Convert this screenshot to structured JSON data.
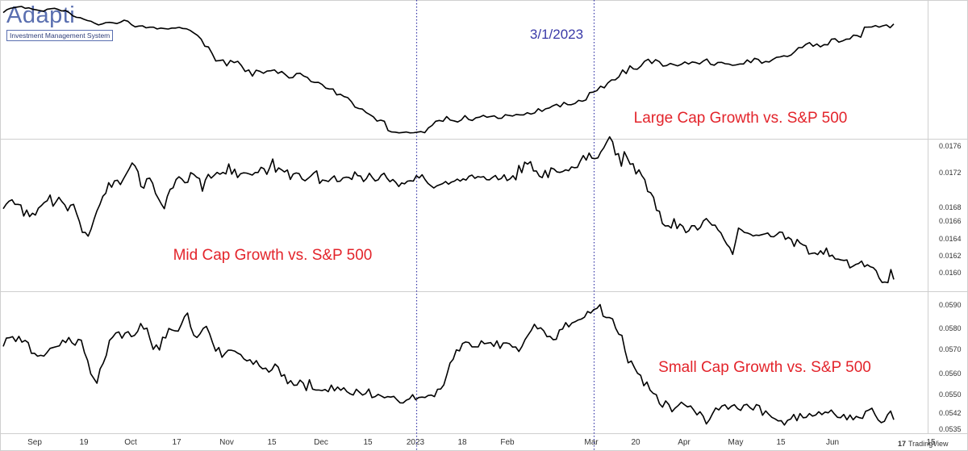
{
  "brand": {
    "name": "Adapti",
    "tagline": "Investment Management System"
  },
  "watermark": "TradingView",
  "marker_label": "3/1/2023",
  "x_axis_ticks": [
    "Sep",
    "19",
    "Oct",
    "17",
    "Nov",
    "15",
    "Dec",
    "15",
    "2023",
    "18",
    "Feb",
    "Mar",
    "20",
    "Apr",
    "May",
    "15",
    "Jun",
    "15"
  ],
  "colors": {
    "line": "#000000",
    "panel_label": "#e3242b",
    "marker": "#3a3aa8",
    "grid": "#d9d9d9",
    "brand": "#5a6fb0"
  },
  "chart_data": [
    {
      "type": "line",
      "title": "Large Cap Growth vs. S&P 500",
      "y_axis_labels": [],
      "series": [
        {
          "values": [
            0.964,
            0.987,
            0.998,
            1.004,
            1.009,
            1.013,
            0.998,
            1.002,
            0.991,
            0.986,
            0.98,
            0.974,
            0.991,
            0.995,
            0.998,
            0.989,
            0.977,
            0.98,
            0.963,
            0.938,
            0.926,
            0.923,
            0.91,
            0.9,
            0.894,
            0.878,
            0.865,
            0.873,
            0.884,
            0.886,
            0.882,
            0.876,
            0.887,
            0.903,
            0.895,
            0.867,
            0.85,
            0.856,
            0.858,
            0.842,
            0.847,
            0.847,
            0.833,
            0.84,
            0.836,
            0.832,
            0.84,
            0.84,
            0.846,
            0.837,
            0.834,
            0.821,
            0.801,
            0.782,
            0.752,
            0.695,
            0.689,
            0.636,
            0.577,
            0.58,
            0.585,
            0.538,
            0.581,
            0.564,
            0.574,
            0.54,
            0.493,
            0.505,
            0.456,
            0.503,
            0.495,
            0.479,
            0.496,
            0.499,
            0.506,
            0.478,
            0.493,
            0.468,
            0.441,
            0.444,
            0.476,
            0.479,
            0.456,
            0.445,
            0.412,
            0.405,
            0.406,
            0.389,
            0.36,
            0.353,
            0.353,
            0.306,
            0.311,
            0.292,
            0.284,
            0.252,
            0.208,
            0.197,
            0.192,
            0.165,
            0.149,
            0.13,
            0.096,
            0.104,
            0.095,
            0.021,
            0.009,
            0.008,
            0.002,
            0.005,
            0.009,
            0.002,
            0.003,
            0.008,
            0.012,
            0.003,
            0.041,
            0.061,
            0.095,
            0.101,
            0.094,
            0.132,
            0.104,
            0.098,
            0.089,
            0.105,
            0.14,
            0.109,
            0.101,
            0.123,
            0.128,
            0.142,
            0.127,
            0.133,
            0.138,
            0.118,
            0.119,
            0.147,
            0.141,
            0.137,
            0.15,
            0.146,
            0.146,
            0.163,
            0.152,
            0.161,
            0.195,
            0.174,
            0.194,
            0.201,
            0.219,
            0.23,
            0.21,
            0.246,
            0.228,
            0.227,
            0.237,
            0.262,
            0.255,
            0.265,
            0.324,
            0.328,
            0.34,
            0.375,
            0.362,
            0.402,
            0.426,
            0.426,
            0.451,
            0.505,
            0.476,
            0.538,
            0.513,
            0.511,
            0.536,
            0.575,
            0.591,
            0.557,
            0.587,
            0.572,
            0.536,
            0.54,
            0.557,
            0.548,
            0.538,
            0.55,
            0.569,
            0.553,
            0.569,
            0.564,
            0.553,
            0.576,
            0.592,
            0.551,
            0.543,
            0.565,
            0.566,
            0.555,
            0.552,
            0.542,
            0.546,
            0.553,
            0.553,
            0.585,
            0.564,
            0.598,
            0.59,
            0.559,
            0.573,
            0.569,
            0.589,
            0.606,
            0.61,
            0.618,
            0.613,
            0.625,
            0.652,
            0.683,
            0.684,
            0.71,
            0.724,
            0.695,
            0.713,
            0.69,
            0.708,
            0.706,
            0.751,
            0.754,
            0.727,
            0.737,
            0.751,
            0.753,
            0.783,
            0.78,
            0.767,
            0.847,
            0.848,
            0.849,
            0.86,
            0.848,
            0.858,
            0.865,
            0.843,
            0.873
          ]
        }
      ]
    },
    {
      "type": "line",
      "title": "Mid Cap Growth vs. S&P 500",
      "y_axis_labels": [
        "0.0176",
        "0.0172",
        "0.0168",
        "0.0166",
        "0.0164",
        "0.0162",
        "0.0160"
      ],
      "series": [
        {
          "values": [
            0.536,
            0.568,
            0.59,
            0.6,
            0.567,
            0.567,
            0.563,
            0.484,
            0.527,
            0.48,
            0.504,
            0.491,
            0.54,
            0.558,
            0.58,
            0.593,
            0.634,
            0.554,
            0.585,
            0.617,
            0.588,
            0.564,
            0.521,
            0.561,
            0.567,
            0.504,
            0.446,
            0.367,
            0.367,
            0.341,
            0.391,
            0.461,
            0.521,
            0.566,
            0.625,
            0.646,
            0.722,
            0.689,
            0.735,
            0.739,
            0.708,
            0.747,
            0.784,
            0.821,
            0.862,
            0.841,
            0.8,
            0.695,
            0.683,
            0.749,
            0.754,
            0.718,
            0.645,
            0.607,
            0.569,
            0.536,
            0.624,
            0.675,
            0.685,
            0.744,
            0.764,
            0.747,
            0.721,
            0.725,
            0.793,
            0.781,
            0.761,
            0.751,
            0.661,
            0.741,
            0.781,
            0.754,
            0.774,
            0.795,
            0.782,
            0.795,
            0.784,
            0.855,
            0.782,
            0.818,
            0.758,
            0.785,
            0.792,
            0.79,
            0.784,
            0.776,
            0.794,
            0.794,
            0.831,
            0.821,
            0.781,
            0.831,
            0.89,
            0.797,
            0.827,
            0.814,
            0.798,
            0.812,
            0.745,
            0.783,
            0.791,
            0.786,
            0.748,
            0.735,
            0.751,
            0.769,
            0.791,
            0.806,
            0.716,
            0.741,
            0.737,
            0.73,
            0.752,
            0.77,
            0.73,
            0.732,
            0.756,
            0.761,
            0.759,
            0.745,
            0.798,
            0.772,
            0.769,
            0.73,
            0.751,
            0.789,
            0.758,
            0.734,
            0.742,
            0.775,
            0.789,
            0.754,
            0.729,
            0.744,
            0.724,
            0.694,
            0.72,
            0.713,
            0.733,
            0.735,
            0.733,
            0.772,
            0.756,
            0.778,
            0.744,
            0.716,
            0.7,
            0.684,
            0.699,
            0.707,
            0.715,
            0.73,
            0.711,
            0.726,
            0.733,
            0.747,
            0.733,
            0.749,
            0.74,
            0.767,
            0.776,
            0.753,
            0.765,
            0.761,
            0.765,
            0.743,
            0.742,
            0.759,
            0.773,
            0.743,
            0.751,
            0.778,
            0.737,
            0.749,
            0.771,
            0.742,
            0.844,
            0.793,
            0.868,
            0.854,
            0.871,
            0.805,
            0.805,
            0.768,
            0.758,
            0.809,
            0.758,
            0.827,
            0.819,
            0.798,
            0.795,
            0.801,
            0.813,
            0.807,
            0.834,
            0.828,
            0.831,
            0.876,
            0.915,
            0.882,
            0.933,
            0.896,
            0.893,
            0.898,
            0.941,
            0.97,
            1.011,
            1.048,
            1.013,
            0.92,
            0.929,
            0.839,
            0.942,
            0.9,
            0.853,
            0.857,
            0.784,
            0.813,
            0.772,
            0.743,
            0.659,
            0.65,
            0.617,
            0.525,
            0.518,
            0.431,
            0.413,
            0.415,
            0.399,
            0.465,
            0.395,
            0.427,
            0.411,
            0.366,
            0.379,
            0.415,
            0.415,
            0.385,
            0.404,
            0.449,
            0.466,
            0.442,
            0.419,
            0.419,
            0.385,
            0.364,
            0.319,
            0.283,
            0.26,
            0.211,
            0.302,
            0.398,
            0.385,
            0.367,
            0.363,
            0.355,
            0.342,
            0.348,
            0.346,
            0.352,
            0.357,
            0.363,
            0.338,
            0.336,
            0.351,
            0.37,
            0.368,
            0.318,
            0.332,
            0.318,
            0.268,
            0.317,
            0.292,
            0.279,
            0.271,
            0.213,
            0.218,
            0.221,
            0.209,
            0.237,
            0.212,
            0.256,
            0.197,
            0.206,
            0.178,
            0.177,
            0.171,
            0.168,
            0.171,
            0.115,
            0.126,
            0.139,
            0.146,
            0.163,
            0.123,
            0.137,
            0.123,
            0.116,
            0.094,
            0.043,
            0.011,
            0.014,
            0.01,
            0.103,
            0.032
          ]
        }
      ]
    },
    {
      "type": "line",
      "title": "Small Cap Growth vs. S&P 500",
      "y_axis_labels": [
        "0.0590",
        "0.0580",
        "0.0570",
        "0.0560",
        "0.0550",
        "0.0542",
        "0.0535"
      ],
      "series": [
        {
          "values": [
            0.647,
            0.713,
            0.716,
            0.724,
            0.686,
            0.727,
            0.681,
            0.695,
            0.677,
            0.593,
            0.593,
            0.57,
            0.577,
            0.571,
            0.599,
            0.632,
            0.639,
            0.646,
            0.652,
            0.697,
            0.678,
            0.718,
            0.676,
            0.657,
            0.703,
            0.696,
            0.599,
            0.537,
            0.431,
            0.394,
            0.357,
            0.47,
            0.515,
            0.578,
            0.695,
            0.72,
            0.753,
            0.762,
            0.712,
            0.753,
            0.764,
            0.725,
            0.734,
            0.765,
            0.828,
            0.784,
            0.791,
            0.702,
            0.624,
            0.659,
            0.619,
            0.72,
            0.714,
            0.789,
            0.777,
            0.77,
            0.768,
            0.821,
            0.882,
            0.911,
            0.8,
            0.735,
            0.718,
            0.747,
            0.789,
            0.806,
            0.75,
            0.678,
            0.61,
            0.639,
            0.561,
            0.592,
            0.618,
            0.617,
            0.611,
            0.595,
            0.583,
            0.549,
            0.533,
            0.542,
            0.506,
            0.535,
            0.493,
            0.471,
            0.476,
            0.444,
            0.464,
            0.508,
            0.484,
            0.412,
            0.424,
            0.353,
            0.377,
            0.34,
            0.342,
            0.381,
            0.358,
            0.299,
            0.384,
            0.31,
            0.303,
            0.303,
            0.299,
            0.307,
            0.29,
            0.342,
            0.297,
            0.327,
            0.301,
            0.321,
            0.29,
            0.273,
            0.264,
            0.309,
            0.286,
            0.263,
            0.275,
            0.311,
            0.243,
            0.251,
            0.269,
            0.256,
            0.242,
            0.251,
            0.247,
            0.253,
            0.226,
            0.202,
            0.201,
            0.223,
            0.233,
            0.266,
            0.227,
            0.244,
            0.247,
            0.244,
            0.26,
            0.263,
            0.251,
            0.309,
            0.311,
            0.344,
            0.428,
            0.516,
            0.546,
            0.62,
            0.612,
            0.671,
            0.682,
            0.678,
            0.644,
            0.644,
            0.643,
            0.692,
            0.669,
            0.673,
            0.678,
            0.647,
            0.691,
            0.632,
            0.674,
            0.675,
            0.669,
            0.642,
            0.643,
            0.607,
            0.646,
            0.701,
            0.738,
            0.775,
            0.822,
            0.786,
            0.794,
            0.77,
            0.724,
            0.727,
            0.7,
            0.703,
            0.777,
            0.784,
            0.835,
            0.802,
            0.832,
            0.842,
            0.856,
            0.863,
            0.878,
            0.923,
            0.911,
            0.938,
            0.947,
            0.978,
            0.886,
            0.875,
            0.875,
            0.865,
            0.792,
            0.743,
            0.734,
            0.612,
            0.518,
            0.532,
            0.48,
            0.435,
            0.419,
            0.337,
            0.366,
            0.302,
            0.277,
            0.266,
            0.195,
            0.168,
            0.217,
            0.189,
            0.132,
            0.159,
            0.18,
            0.207,
            0.187,
            0.17,
            0.177,
            0.144,
            0.107,
            0.132,
            0.097,
            0.035,
            0.069,
            0.116,
            0.161,
            0.146,
            0.177,
            0.186,
            0.152,
            0.175,
            0.187,
            0.157,
            0.142,
            0.184,
            0.19,
            0.164,
            0.146,
            0.188,
            0.179,
            0.104,
            0.138,
            0.111,
            0.087,
            0.075,
            0.059,
            0.061,
            0.027,
            0.064,
            0.074,
            0.11,
            0.061,
            0.117,
            0.084,
            0.087,
            0.117,
            0.097,
            0.106,
            0.132,
            0.109,
            0.129,
            0.123,
            0.145,
            0.114,
            0.087,
            0.085,
            0.11,
            0.068,
            0.106,
            0.068,
            0.095,
            0.085,
            0.079,
            0.135,
            0.145,
            0.159,
            0.108,
            0.067,
            0.045,
            0.056,
            0.108,
            0.137,
            0.069
          ]
        }
      ]
    }
  ]
}
